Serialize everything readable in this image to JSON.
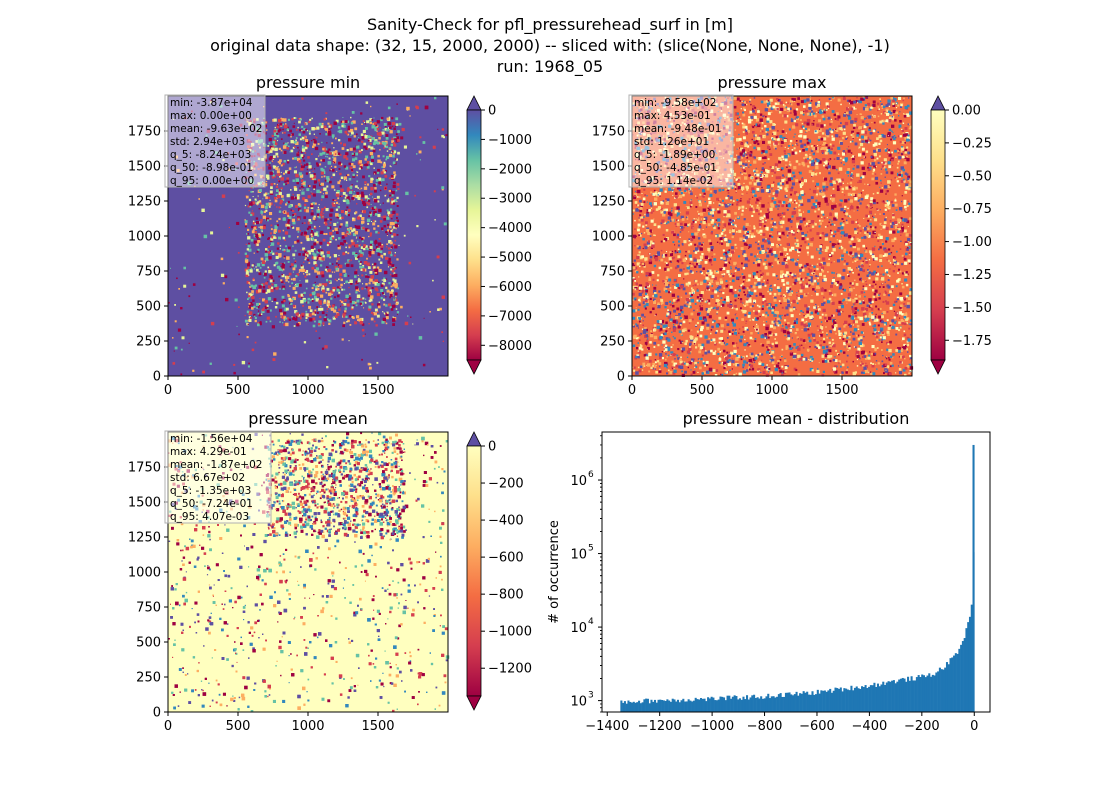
{
  "figure": {
    "title_lines": [
      "Sanity-Check for pfl_pressurehead_surf in [m]",
      "original data shape: (32, 15, 2000, 2000) -- sliced with: (slice(None, None, None), -1)",
      "run: 1968_05"
    ]
  },
  "panels": {
    "min": {
      "title": "pressure min",
      "stats": [
        "min: -3.87e+04",
        "max: 0.00e+00",
        "mean: -9.63e+02",
        "std: 2.94e+03",
        "q_5: -8.24e+03",
        "q_50: -8.98e-01",
        "q_95: 0.00e+00"
      ],
      "colorbar": {
        "range": [
          -8500,
          0
        ],
        "ticks": [
          "0",
          "−1000",
          "−2000",
          "−3000",
          "−4000",
          "−5000",
          "−6000",
          "−7000",
          "−8000"
        ],
        "tick_values": [
          0,
          -1000,
          -2000,
          -3000,
          -4000,
          -5000,
          -6000,
          -7000,
          -8000
        ]
      },
      "background_color": "#5e4fa2",
      "speckle_colors": [
        "#9e0142",
        "#d53e4f",
        "#fdae61",
        "#e6f598",
        "#66c2a5"
      ]
    },
    "max": {
      "title": "pressure max",
      "stats": [
        "min: -9.58e+02",
        "max: 4.53e-01",
        "mean: -9.48e-01",
        "std: 1.26e+01",
        "q_5: -1.89e+00",
        "q_50: -4.85e-01",
        "q_95: 1.14e-02"
      ],
      "colorbar": {
        "range": [
          -1.9,
          0
        ],
        "ticks": [
          "0.00",
          "−0.25",
          "−0.50",
          "−0.75",
          "−1.00",
          "−1.25",
          "−1.50",
          "−1.75"
        ],
        "tick_values": [
          0,
          -0.25,
          -0.5,
          -0.75,
          -1.0,
          -1.25,
          -1.5,
          -1.75
        ]
      },
      "background_color": "#f46d43",
      "speckle_colors": [
        "#9e0142",
        "#d53e4f",
        "#fdae61",
        "#fee08b",
        "#3288bd",
        "#5e4fa2",
        "#ffffbf"
      ]
    },
    "mean": {
      "title": "pressure mean",
      "stats": [
        "min: -1.56e+04",
        "max: 4.29e-01",
        "mean: -1.87e+02",
        "std: 6.67e+02",
        "q_5: -1.35e+03",
        "q_50: -7.24e-01",
        "q_95: 4.07e-03"
      ],
      "colorbar": {
        "range": [
          -1350,
          0
        ],
        "ticks": [
          "0",
          "−200",
          "−400",
          "−600",
          "−800",
          "−1000",
          "−1200"
        ],
        "tick_values": [
          0,
          -200,
          -400,
          -600,
          -800,
          -1000,
          -1200
        ]
      },
      "background_color": "#ffffbf",
      "speckle_colors": [
        "#9e0142",
        "#5e4fa2",
        "#3288bd",
        "#66c2a5",
        "#fdae61",
        "#d53e4f"
      ]
    },
    "map_axes": {
      "x_ticks": [
        "0",
        "500",
        "1000",
        "1500"
      ],
      "x_tick_values": [
        0,
        500,
        1000,
        1500
      ],
      "y_ticks": [
        "0",
        "250",
        "500",
        "750",
        "1000",
        "1250",
        "1500",
        "1750"
      ],
      "y_tick_values": [
        0,
        250,
        500,
        750,
        1000,
        1250,
        1500,
        1750
      ],
      "extent": [
        0,
        2000
      ]
    }
  },
  "chart_data": [
    {
      "type": "heatmap",
      "title": "pressure min",
      "xlim": [
        0,
        2000
      ],
      "ylim": [
        0,
        2000
      ],
      "colorbar_range": [
        -8500,
        0
      ],
      "cmap": "Spectral"
    },
    {
      "type": "heatmap",
      "title": "pressure max",
      "xlim": [
        0,
        2000
      ],
      "ylim": [
        0,
        2000
      ],
      "colorbar_range": [
        -1.9,
        0
      ],
      "cmap": "Spectral"
    },
    {
      "type": "heatmap",
      "title": "pressure mean",
      "xlim": [
        0,
        2000
      ],
      "ylim": [
        0,
        2000
      ],
      "colorbar_range": [
        -1350,
        0
      ],
      "cmap": "Spectral"
    },
    {
      "type": "bar",
      "title": "pressure mean - distribution",
      "xlabel": "",
      "ylabel": "# of occurrence",
      "yscale": "log",
      "xlim": [
        -1420,
        60
      ],
      "ylim": [
        700,
        4500000
      ],
      "x_ticks": [
        "−1400",
        "−1200",
        "−1000",
        "−800",
        "−600",
        "−400",
        "−200",
        "0"
      ],
      "x_tick_values": [
        -1400,
        -1200,
        -1000,
        -800,
        -600,
        -400,
        -200,
        0
      ],
      "y_ticks": [
        "10",
        "10",
        "10",
        "10"
      ],
      "y_tick_exponents": [
        "3",
        "4",
        "5",
        "6"
      ],
      "y_tick_values": [
        1000,
        10000,
        100000,
        1000000
      ],
      "color": "#1f77b4",
      "bin_width": 6.75,
      "bin_start": -1350,
      "bin_end": 0,
      "profile_x": [
        -1350,
        -1200,
        -1000,
        -800,
        -600,
        -400,
        -300,
        -200,
        -150,
        -100,
        -60,
        -40,
        -20,
        -10,
        -4,
        0
      ],
      "profile_y": [
        960,
        1010,
        1060,
        1140,
        1300,
        1600,
        1850,
        2100,
        2350,
        3200,
        4800,
        7000,
        12000,
        22000,
        60000,
        3000000
      ]
    }
  ]
}
